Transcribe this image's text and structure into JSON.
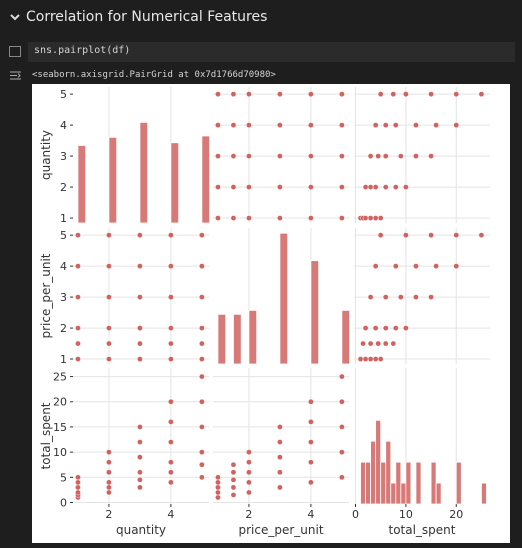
{
  "header": {
    "title": "Correlation for Numerical Features"
  },
  "cell": {
    "code": "sns.pairplot(df)",
    "output": "<seaborn.axisgrid.PairGrid at 0x7d1766d70980>"
  },
  "chart_data": {
    "type": "pairplot",
    "color": "#d0625f",
    "grid": true,
    "variables": [
      {
        "name": "quantity",
        "lim": [
          0.84,
          5.23
        ],
        "xticks": [
          2,
          4
        ],
        "yticks": [
          1,
          2,
          3,
          4,
          5
        ]
      },
      {
        "name": "price_per_unit",
        "lim": [
          0.84,
          5.23
        ],
        "xticks": [
          2,
          4
        ],
        "yticks": [
          1,
          2,
          3,
          4,
          5
        ]
      },
      {
        "name": "total_spent",
        "lim": [
          -0.3,
          26.7
        ],
        "xticks": [
          0,
          10,
          20
        ],
        "yticks": [
          0,
          5,
          10,
          15,
          20,
          25
        ]
      }
    ],
    "rows": [
      [
        1,
        1,
        1
      ],
      [
        1,
        1.5,
        1.5
      ],
      [
        1,
        2,
        2
      ],
      [
        1,
        3,
        3
      ],
      [
        1,
        4,
        4
      ],
      [
        1,
        5,
        5
      ],
      [
        2,
        1,
        2
      ],
      [
        2,
        1.5,
        3
      ],
      [
        2,
        2,
        4
      ],
      [
        2,
        3,
        6
      ],
      [
        2,
        4,
        8
      ],
      [
        2,
        5,
        10
      ],
      [
        3,
        1,
        3
      ],
      [
        3,
        1.5,
        4.5
      ],
      [
        3,
        2,
        6
      ],
      [
        3,
        3,
        9
      ],
      [
        3,
        4,
        12
      ],
      [
        3,
        5,
        15
      ],
      [
        4,
        1,
        4
      ],
      [
        4,
        1.5,
        6
      ],
      [
        4,
        2,
        8
      ],
      [
        4,
        3,
        12
      ],
      [
        4,
        4,
        16
      ],
      [
        4,
        5,
        20
      ],
      [
        5,
        1,
        5
      ],
      [
        5,
        1.5,
        7.5
      ],
      [
        5,
        2,
        10
      ],
      [
        5,
        3,
        15
      ],
      [
        5,
        4,
        20
      ],
      [
        5,
        5,
        25
      ]
    ],
    "hist": [
      {
        "bins": [
          1,
          1.25,
          1.5,
          1.75,
          2,
          2.25,
          2.5,
          2.75,
          3,
          3.25,
          3.5,
          3.75,
          4,
          4.25,
          4.5,
          4.75,
          5,
          5.25
        ],
        "counts": [
          57,
          0,
          0,
          0,
          63,
          0,
          0,
          0,
          74,
          0,
          0,
          0,
          59,
          0,
          0,
          0,
          64
        ],
        "ylim": [
          0,
          100
        ]
      },
      {
        "bins": [
          1,
          1.25,
          1.5,
          1.75,
          2,
          2.25,
          2.5,
          2.75,
          3,
          3.25,
          3.5,
          3.75,
          4,
          4.25,
          4.5,
          4.75,
          5,
          5.25
        ],
        "counts": [
          38,
          0,
          38,
          0,
          41,
          0,
          0,
          0,
          100,
          0,
          0,
          0,
          79,
          0,
          0,
          0,
          41
        ],
        "ylim": [
          0,
          104
        ]
      },
      {
        "bins": [
          1,
          2,
          3,
          4,
          5,
          6,
          7,
          8,
          9,
          10,
          11,
          12,
          13,
          14,
          15,
          16,
          17,
          18,
          19,
          20,
          21,
          22,
          23,
          24,
          25,
          26
        ],
        "counts": [
          2,
          2,
          3,
          4,
          2,
          3,
          1,
          2,
          1,
          2,
          0,
          2,
          0,
          0,
          2,
          1,
          0,
          0,
          0,
          2,
          0,
          0,
          0,
          0,
          1
        ],
        "ylim": [
          0,
          6.5
        ]
      }
    ]
  }
}
